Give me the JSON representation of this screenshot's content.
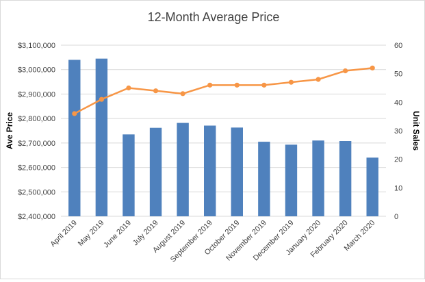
{
  "chart_data": {
    "type": "bar+line",
    "title": "12-Month Average Price",
    "categories": [
      "April 2019",
      "May 2019",
      "June 2019",
      "July 2019",
      "August 2019",
      "September 2019",
      "October 2019",
      "November 2019",
      "December 2019",
      "January 2020",
      "February 2020",
      "March 2020"
    ],
    "series": [
      {
        "kind": "bar",
        "axis": "left",
        "values": [
          3040000,
          3045000,
          2735000,
          2762000,
          2782000,
          2771000,
          2763000,
          2705000,
          2693000,
          2710000,
          2708000,
          2640000
        ],
        "color": "#4f81bd"
      },
      {
        "kind": "line",
        "axis": "right",
        "values": [
          36,
          41,
          45,
          44,
          43,
          46,
          46,
          46,
          47,
          48,
          51,
          52
        ],
        "color": "#f79646"
      }
    ],
    "y_left": {
      "label": "Ave Price",
      "range": [
        2400000,
        3100000
      ],
      "ticks": [
        "$2,400,000",
        "$2,500,000",
        "$2,600,000",
        "$2,700,000",
        "$2,800,000",
        "$2,900,000",
        "$3,000,000",
        "$3,100,000"
      ],
      "tick_values": [
        2400000,
        2500000,
        2600000,
        2700000,
        2800000,
        2900000,
        3000000,
        3100000
      ]
    },
    "y_right": {
      "label": "Unit Sales",
      "range": [
        0,
        60
      ],
      "ticks": [
        "0",
        "10",
        "20",
        "30",
        "40",
        "50",
        "60"
      ],
      "tick_values": [
        0,
        10,
        20,
        30,
        40,
        50,
        60
      ]
    },
    "grid": true,
    "legend": "none"
  }
}
